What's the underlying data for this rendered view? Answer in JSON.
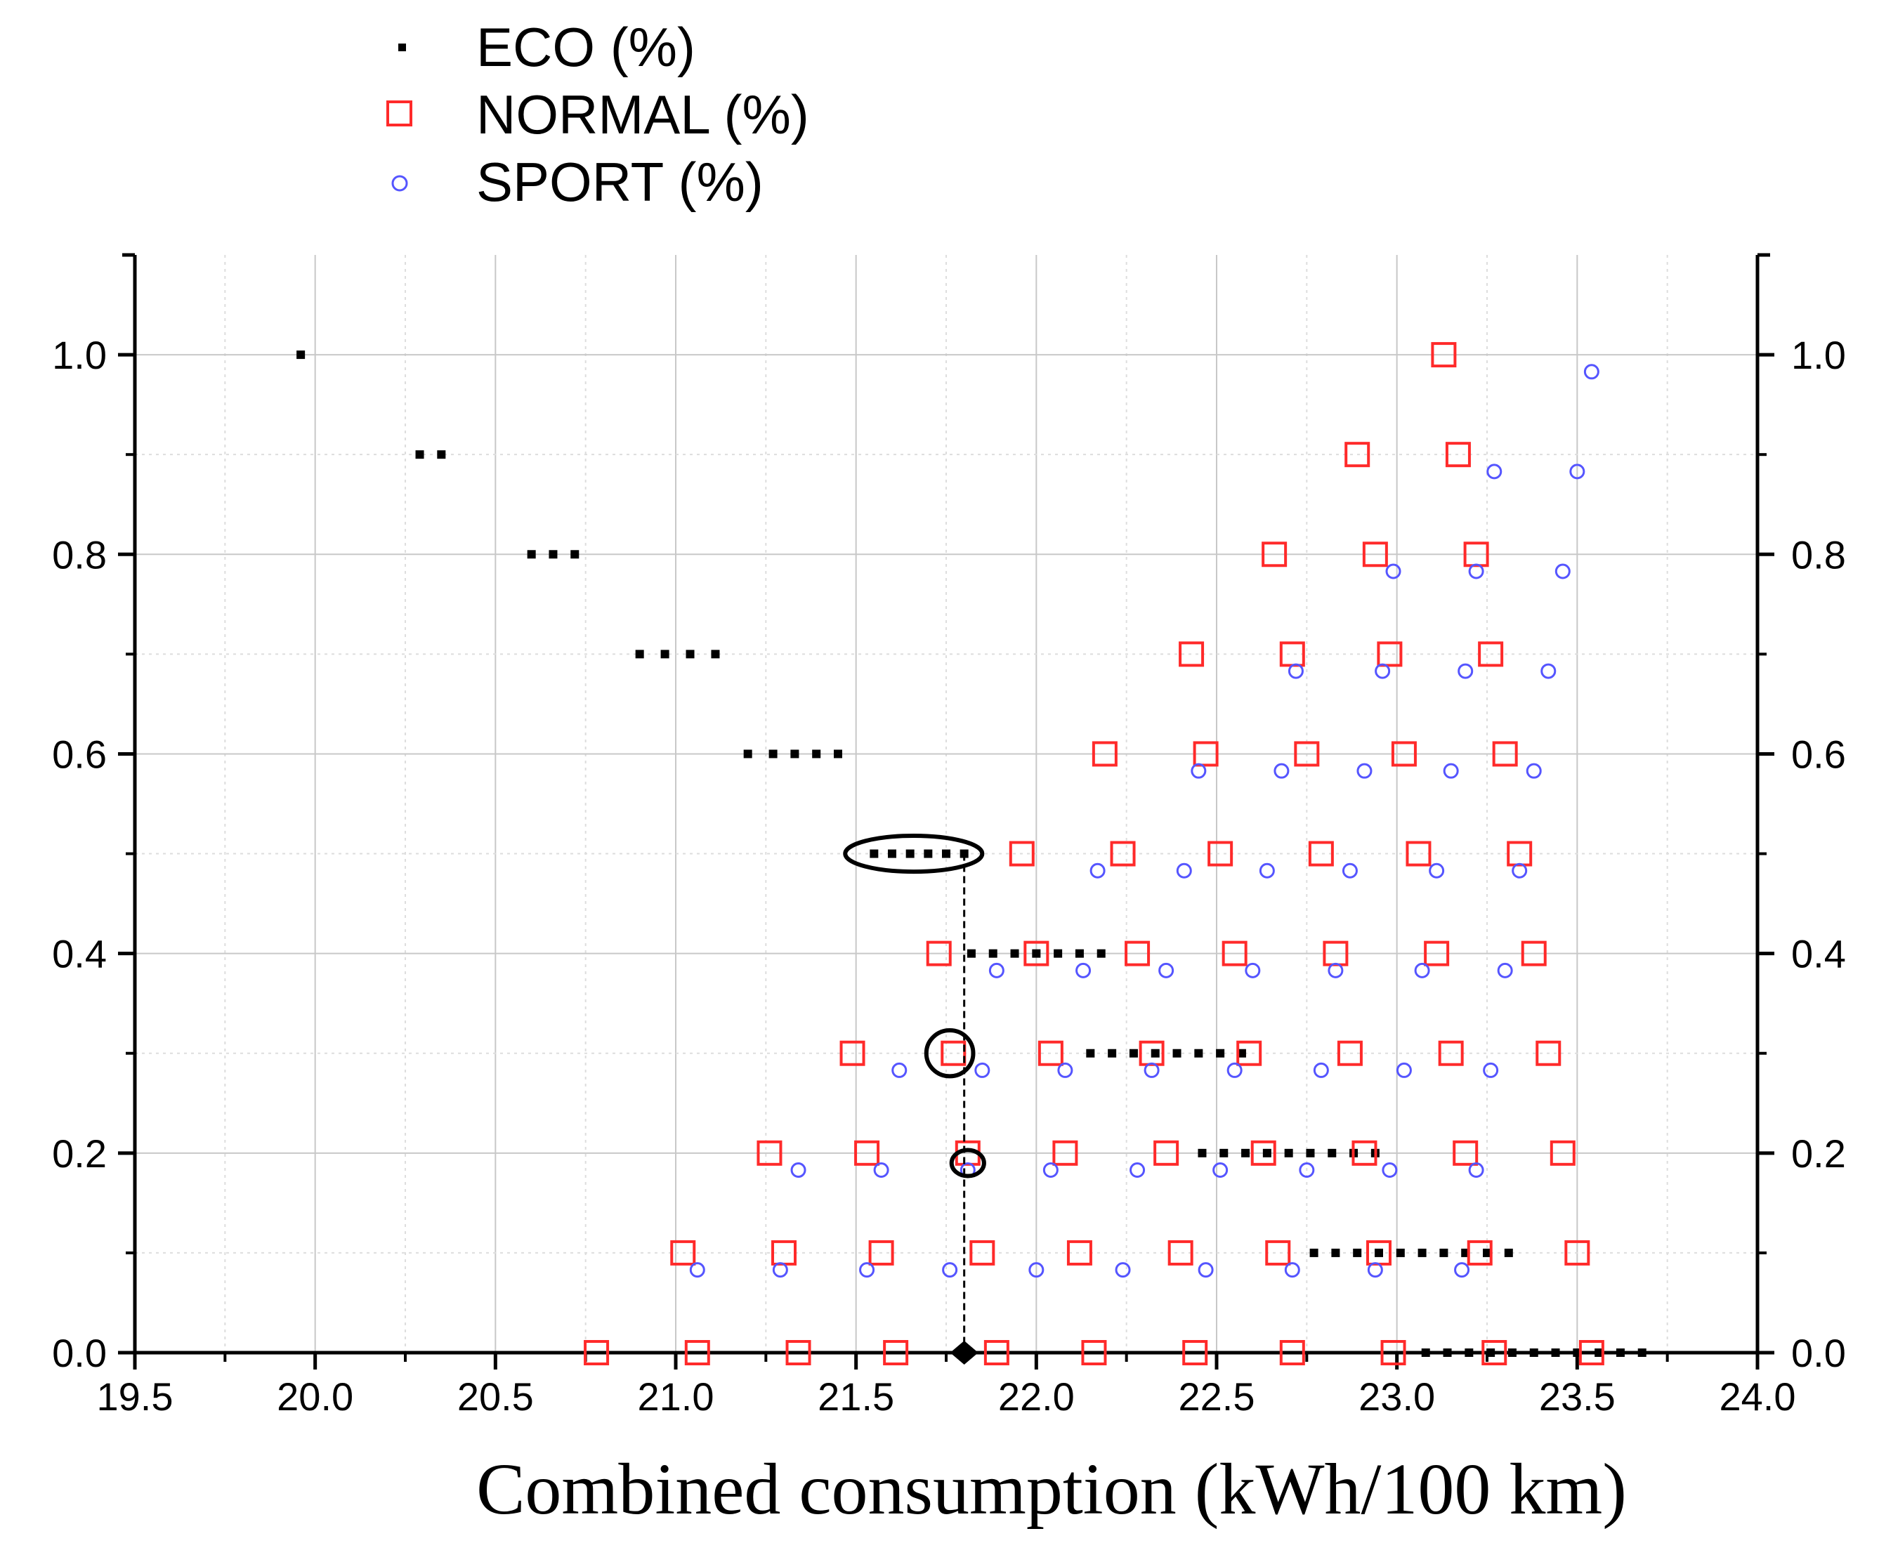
{
  "chart_data": {
    "type": "scatter",
    "title": "",
    "xlabel": "Combined consumption (kWh/100 km)",
    "ylabel": "",
    "xlim": [
      19.5,
      24.0
    ],
    "ylim": [
      0.0,
      1.1
    ],
    "x_ticks": [
      "19.5",
      "20.0",
      "20.5",
      "21.0",
      "21.5",
      "22.0",
      "22.5",
      "23.0",
      "23.5",
      "24.0"
    ],
    "y_ticks": [
      "0.0",
      "0.2",
      "0.4",
      "0.6",
      "0.8",
      "1.0"
    ],
    "y_ticks_right": [
      "0.0",
      "0.2",
      "0.4",
      "0.6",
      "0.8",
      "1.0"
    ],
    "grid": true,
    "legend_position": "top-left, above plot",
    "colors": {
      "ECO": "#000000",
      "NORMAL": "#ff2a2a",
      "SPORT": "#5555ff"
    },
    "series": [
      {
        "name": "ECO (%)",
        "marker": "small-square",
        "points": [
          [
            19.96,
            1.0
          ],
          [
            20.29,
            0.9
          ],
          [
            20.35,
            0.9
          ],
          [
            20.6,
            0.8
          ],
          [
            20.66,
            0.8
          ],
          [
            20.72,
            0.8
          ],
          [
            20.9,
            0.7
          ],
          [
            20.97,
            0.7
          ],
          [
            21.04,
            0.7
          ],
          [
            21.11,
            0.7
          ],
          [
            21.2,
            0.6
          ],
          [
            21.27,
            0.6
          ],
          [
            21.33,
            0.6
          ],
          [
            21.39,
            0.6
          ],
          [
            21.45,
            0.6
          ],
          [
            21.55,
            0.5
          ],
          [
            21.6,
            0.5
          ],
          [
            21.65,
            0.5
          ],
          [
            21.7,
            0.5
          ],
          [
            21.75,
            0.5
          ],
          [
            21.8,
            0.5
          ],
          [
            21.82,
            0.4
          ],
          [
            21.88,
            0.4
          ],
          [
            21.94,
            0.4
          ],
          [
            22.0,
            0.4
          ],
          [
            22.06,
            0.4
          ],
          [
            22.12,
            0.4
          ],
          [
            22.18,
            0.4
          ],
          [
            22.15,
            0.3
          ],
          [
            22.21,
            0.3
          ],
          [
            22.27,
            0.3
          ],
          [
            22.33,
            0.3
          ],
          [
            22.39,
            0.3
          ],
          [
            22.45,
            0.3
          ],
          [
            22.51,
            0.3
          ],
          [
            22.57,
            0.3
          ],
          [
            22.46,
            0.2
          ],
          [
            22.52,
            0.2
          ],
          [
            22.58,
            0.2
          ],
          [
            22.64,
            0.2
          ],
          [
            22.7,
            0.2
          ],
          [
            22.76,
            0.2
          ],
          [
            22.82,
            0.2
          ],
          [
            22.88,
            0.2
          ],
          [
            22.94,
            0.2
          ],
          [
            22.77,
            0.1
          ],
          [
            22.83,
            0.1
          ],
          [
            22.89,
            0.1
          ],
          [
            22.95,
            0.1
          ],
          [
            23.01,
            0.1
          ],
          [
            23.07,
            0.1
          ],
          [
            23.13,
            0.1
          ],
          [
            23.19,
            0.1
          ],
          [
            23.25,
            0.1
          ],
          [
            23.31,
            0.1
          ],
          [
            23.08,
            0.0
          ],
          [
            23.14,
            0.0
          ],
          [
            23.2,
            0.0
          ],
          [
            23.26,
            0.0
          ],
          [
            23.32,
            0.0
          ],
          [
            23.38,
            0.0
          ],
          [
            23.44,
            0.0
          ],
          [
            23.5,
            0.0
          ],
          [
            23.56,
            0.0
          ],
          [
            23.62,
            0.0
          ],
          [
            23.68,
            0.0
          ]
        ]
      },
      {
        "name": "NORMAL (%)",
        "marker": "open-square",
        "points": [
          [
            23.13,
            1.0
          ],
          [
            22.89,
            0.9
          ],
          [
            23.17,
            0.9
          ],
          [
            22.66,
            0.8
          ],
          [
            22.94,
            0.8
          ],
          [
            23.22,
            0.8
          ],
          [
            22.43,
            0.7
          ],
          [
            22.71,
            0.7
          ],
          [
            22.98,
            0.7
          ],
          [
            23.26,
            0.7
          ],
          [
            22.19,
            0.6
          ],
          [
            22.47,
            0.6
          ],
          [
            22.75,
            0.6
          ],
          [
            23.02,
            0.6
          ],
          [
            23.3,
            0.6
          ],
          [
            21.96,
            0.5
          ],
          [
            22.24,
            0.5
          ],
          [
            22.51,
            0.5
          ],
          [
            22.79,
            0.5
          ],
          [
            23.06,
            0.5
          ],
          [
            23.34,
            0.5
          ],
          [
            21.73,
            0.4
          ],
          [
            22.0,
            0.4
          ],
          [
            22.28,
            0.4
          ],
          [
            22.55,
            0.4
          ],
          [
            22.83,
            0.4
          ],
          [
            23.11,
            0.4
          ],
          [
            23.38,
            0.4
          ],
          [
            21.49,
            0.3
          ],
          [
            21.77,
            0.3
          ],
          [
            22.04,
            0.3
          ],
          [
            22.32,
            0.3
          ],
          [
            22.59,
            0.3
          ],
          [
            22.87,
            0.3
          ],
          [
            23.15,
            0.3
          ],
          [
            23.42,
            0.3
          ],
          [
            21.26,
            0.2
          ],
          [
            21.53,
            0.2
          ],
          [
            21.81,
            0.2
          ],
          [
            22.08,
            0.2
          ],
          [
            22.36,
            0.2
          ],
          [
            22.63,
            0.2
          ],
          [
            22.91,
            0.2
          ],
          [
            23.19,
            0.2
          ],
          [
            23.46,
            0.2
          ],
          [
            21.02,
            0.1
          ],
          [
            21.3,
            0.1
          ],
          [
            21.57,
            0.1
          ],
          [
            21.85,
            0.1
          ],
          [
            22.12,
            0.1
          ],
          [
            22.4,
            0.1
          ],
          [
            22.67,
            0.1
          ],
          [
            22.95,
            0.1
          ],
          [
            23.23,
            0.1
          ],
          [
            23.5,
            0.1
          ],
          [
            20.78,
            0.0
          ],
          [
            21.06,
            0.0
          ],
          [
            21.34,
            0.0
          ],
          [
            21.61,
            0.0
          ],
          [
            21.89,
            0.0
          ],
          [
            22.16,
            0.0
          ],
          [
            22.44,
            0.0
          ],
          [
            22.71,
            0.0
          ],
          [
            22.99,
            0.0
          ],
          [
            23.27,
            0.0
          ],
          [
            23.54,
            0.0
          ]
        ]
      },
      {
        "name": "SPORT (%)",
        "marker": "open-circle",
        "points": [
          [
            23.54,
            0.99
          ],
          [
            23.27,
            0.89
          ],
          [
            23.5,
            0.89
          ],
          [
            22.99,
            0.79
          ],
          [
            23.22,
            0.79
          ],
          [
            23.46,
            0.79
          ],
          [
            22.72,
            0.69
          ],
          [
            22.96,
            0.69
          ],
          [
            23.19,
            0.69
          ],
          [
            23.42,
            0.69
          ],
          [
            22.45,
            0.59
          ],
          [
            22.68,
            0.59
          ],
          [
            22.91,
            0.59
          ],
          [
            23.15,
            0.59
          ],
          [
            23.38,
            0.59
          ],
          [
            22.17,
            0.49
          ],
          [
            22.41,
            0.49
          ],
          [
            22.64,
            0.49
          ],
          [
            22.87,
            0.49
          ],
          [
            23.11,
            0.49
          ],
          [
            23.34,
            0.49
          ],
          [
            21.89,
            0.39
          ],
          [
            22.13,
            0.39
          ],
          [
            22.36,
            0.39
          ],
          [
            22.6,
            0.39
          ],
          [
            22.83,
            0.39
          ],
          [
            23.07,
            0.39
          ],
          [
            23.3,
            0.39
          ],
          [
            21.62,
            0.29
          ],
          [
            21.85,
            0.29
          ],
          [
            22.08,
            0.29
          ],
          [
            22.32,
            0.29
          ],
          [
            22.55,
            0.29
          ],
          [
            22.79,
            0.29
          ],
          [
            23.02,
            0.29
          ],
          [
            23.26,
            0.29
          ],
          [
            21.34,
            0.19
          ],
          [
            21.57,
            0.19
          ],
          [
            21.81,
            0.19
          ],
          [
            22.04,
            0.19
          ],
          [
            22.28,
            0.19
          ],
          [
            22.51,
            0.19
          ],
          [
            22.75,
            0.19
          ],
          [
            22.98,
            0.19
          ],
          [
            23.22,
            0.19
          ],
          [
            21.06,
            0.09
          ],
          [
            21.29,
            0.09
          ],
          [
            21.53,
            0.09
          ],
          [
            21.76,
            0.09
          ],
          [
            22.0,
            0.09
          ],
          [
            22.24,
            0.09
          ],
          [
            22.47,
            0.09
          ],
          [
            22.71,
            0.09
          ],
          [
            22.94,
            0.09
          ],
          [
            23.18,
            0.09
          ]
        ]
      }
    ],
    "annotations": {
      "ellipses": [
        {
          "cx": 21.66,
          "cy": 0.5,
          "rx": 0.19,
          "ry": 0.018
        },
        {
          "cx": 21.76,
          "cy": 0.3,
          "rx": 0.065,
          "ry": 0.023
        },
        {
          "cx": 21.81,
          "cy": 0.19,
          "rx": 0.045,
          "ry": 0.013
        }
      ],
      "dashed_line": {
        "x": 21.8,
        "y_from": 0.0,
        "y_to": 0.5
      },
      "marker_diamond": {
        "x": 21.8,
        "y": 0.0
      }
    }
  }
}
